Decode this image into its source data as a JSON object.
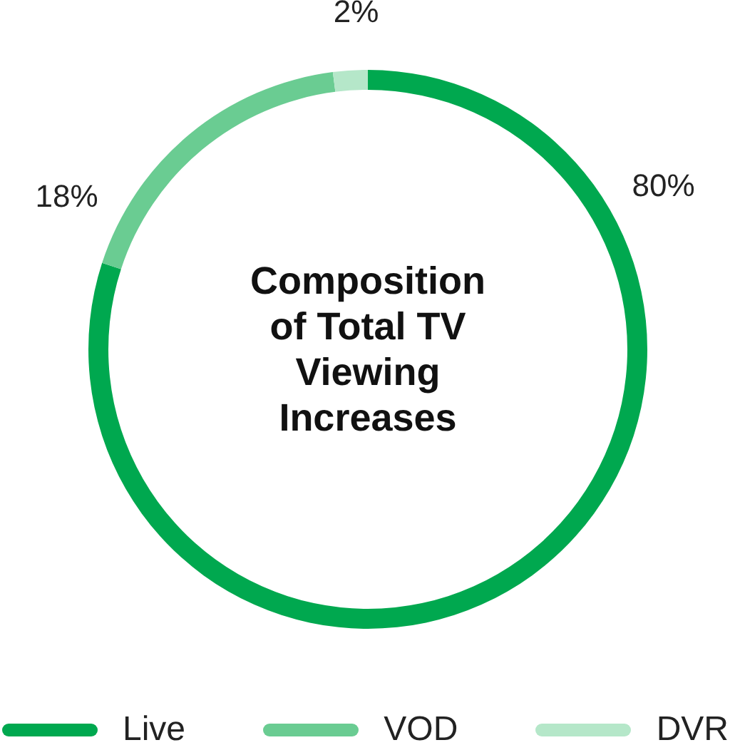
{
  "chart_data": {
    "type": "donut",
    "title": "Composition of Total TV Viewing Increases",
    "categories": [
      "Live",
      "VOD",
      "DVR"
    ],
    "values": [
      80,
      18,
      2
    ],
    "colors": [
      "#00a84f",
      "#6acc92",
      "#b5e7c9"
    ],
    "value_labels": [
      "80%",
      "18%",
      "2%"
    ],
    "legend": "bottom"
  }
}
